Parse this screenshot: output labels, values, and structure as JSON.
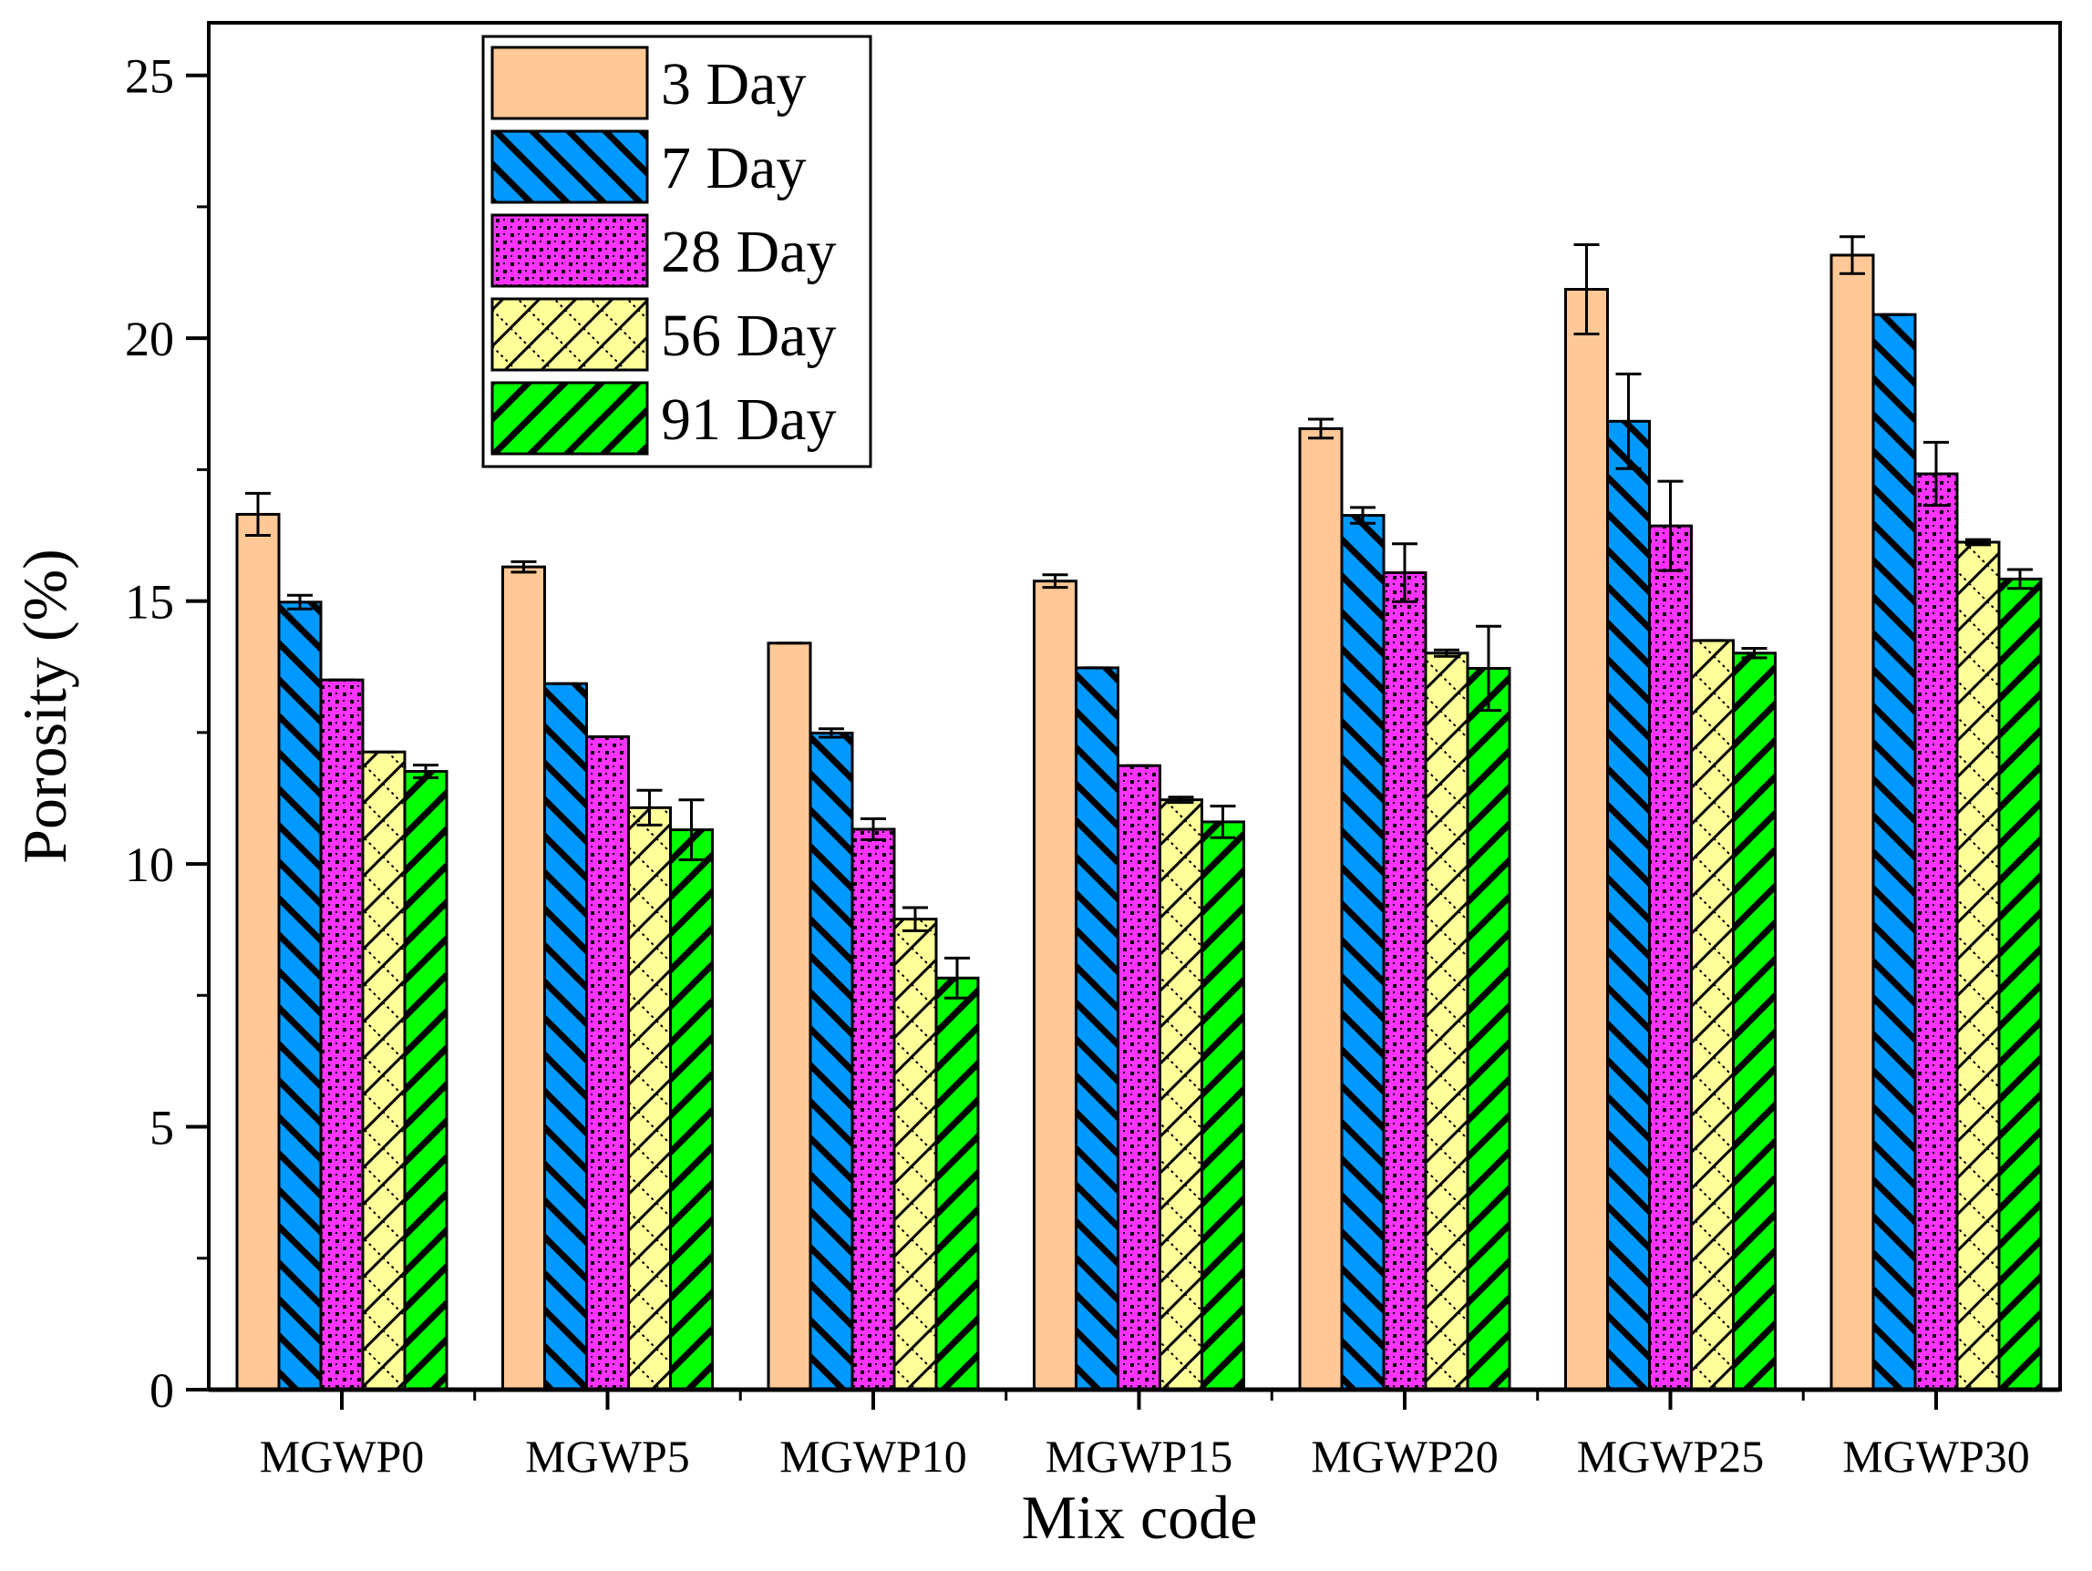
{
  "chart_data": {
    "type": "bar",
    "title": "",
    "xlabel": "Mix code",
    "ylabel": "Porosity (%)",
    "ylim": [
      0,
      26
    ],
    "yticks": [
      0,
      5,
      10,
      15,
      20,
      25
    ],
    "ytick_labels": [
      "0",
      "5",
      "10",
      "15",
      "20",
      "25"
    ],
    "grid": false,
    "legend_position": "top-left",
    "categories": [
      "MGWP0",
      "MGWP5",
      "MGWP10",
      "MGWP15",
      "MGWP20",
      "MGWP25",
      "MGWP30"
    ],
    "series": [
      {
        "name": "3 Day",
        "color": "#FFC896",
        "pattern": "none",
        "values": [
          16.65,
          15.65,
          14.2,
          15.38,
          18.28,
          20.93,
          21.58
        ],
        "errors": [
          0.4,
          0.1,
          0.0,
          0.12,
          0.18,
          0.85,
          0.35
        ]
      },
      {
        "name": "7 Day",
        "color": "#0099FF",
        "pattern": "backslash",
        "values": [
          14.98,
          13.43,
          12.49,
          13.73,
          16.63,
          18.42,
          20.45
        ],
        "errors": [
          0.13,
          0.0,
          0.08,
          0.0,
          0.15,
          0.9,
          0.0
        ]
      },
      {
        "name": "28 Day",
        "color": "#FF33FF",
        "pattern": "checker",
        "values": [
          13.5,
          12.42,
          10.66,
          11.87,
          15.54,
          16.43,
          17.42
        ],
        "errors": [
          0.0,
          0.0,
          0.2,
          0.0,
          0.55,
          0.85,
          0.6
        ]
      },
      {
        "name": "56 Day",
        "color": "#FFFF99",
        "pattern": "crosshatch",
        "values": [
          12.13,
          11.07,
          8.95,
          11.22,
          14.01,
          14.25,
          16.12
        ],
        "errors": [
          0.0,
          0.33,
          0.22,
          0.05,
          0.06,
          0.0,
          0.05
        ]
      },
      {
        "name": "91 Day",
        "color": "#00FF00",
        "pattern": "slash",
        "values": [
          11.76,
          10.65,
          7.83,
          10.8,
          13.72,
          14.01,
          15.42
        ],
        "errors": [
          0.12,
          0.57,
          0.38,
          0.3,
          0.8,
          0.09,
          0.18
        ]
      }
    ]
  }
}
